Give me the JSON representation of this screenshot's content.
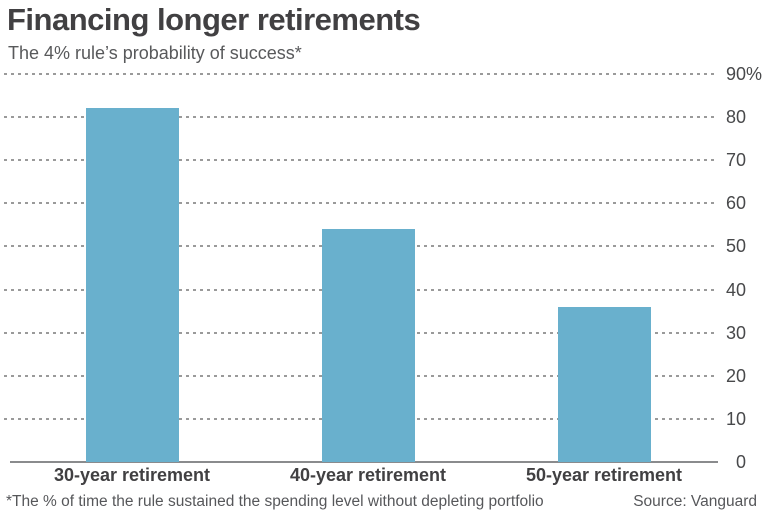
{
  "header": {
    "title": "Financing longer retirements",
    "subtitle": "The 4% rule’s probability of success*"
  },
  "chart_data": {
    "type": "bar",
    "title": "Financing longer retirements",
    "subtitle": "The 4% rule’s probability of success*",
    "categories": [
      "30-year retirement",
      "40-year retirement",
      "50-year retirement"
    ],
    "values": [
      82,
      54,
      36
    ],
    "xlabel": "",
    "ylabel": "",
    "ylim": [
      0,
      90
    ],
    "yticks": [
      0,
      10,
      20,
      30,
      40,
      50,
      60,
      70,
      80,
      90
    ],
    "ytick_top_suffix": "%",
    "ytick_side": "right",
    "grid": "horizontal-dotted",
    "legend": "none",
    "bar_color": "#69b0cd",
    "gridline_color": "#9a9a9a",
    "axis_color": "#8a8b8d"
  },
  "footer": {
    "footnote": "*The % of time the rule sustained the spending level without depleting portfolio",
    "source": "Source: Vanguard"
  }
}
